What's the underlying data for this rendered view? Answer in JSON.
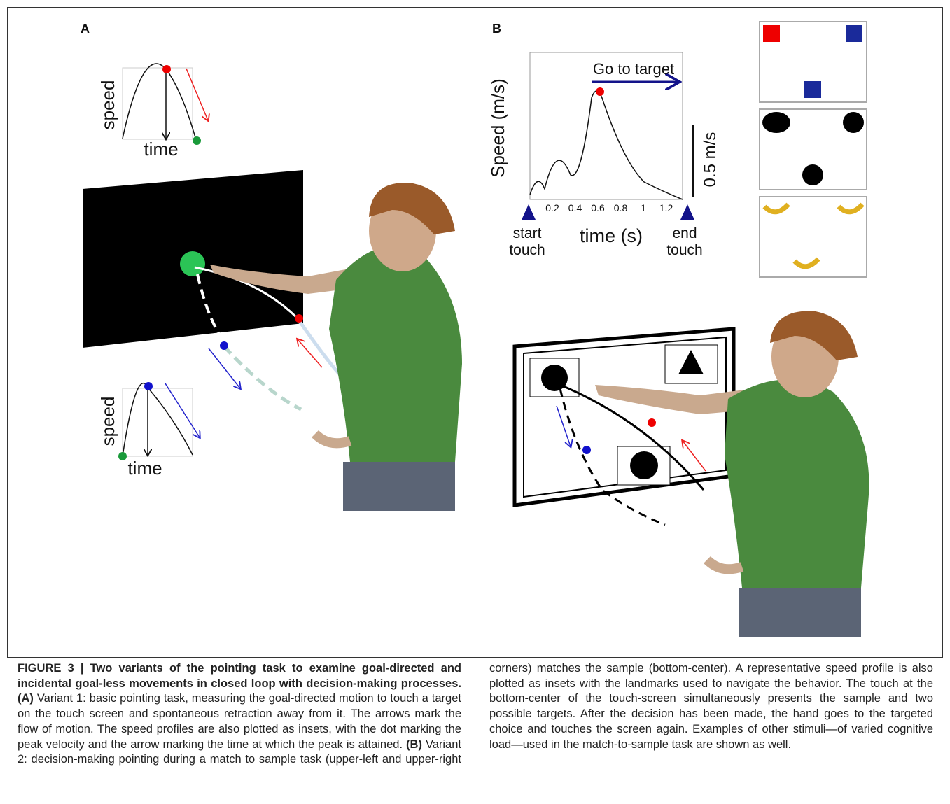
{
  "figure": {
    "panel_a": {
      "label": "A",
      "top_inset": {
        "y_label": "speed",
        "x_label": "time"
      },
      "bottom_inset": {
        "y_label": "speed",
        "x_label": "time"
      }
    },
    "panel_b": {
      "label": "B",
      "y_label": "Speed (m/s)",
      "annotation": "Go to target",
      "scale_bar": "0.5 m/s",
      "x_ticks": [
        "0.2",
        "0.4",
        "0.6",
        "0.8",
        "1",
        "1.2"
      ],
      "x_label": "time (s)",
      "start_label": "start\ntouch",
      "end_label": "end\ntouch"
    }
  },
  "caption": {
    "title": "FIGURE 3 | Two variants of the pointing task to examine goal-directed and incidental goal-less movements in closed loop with decision-making processes.",
    "a_label": "(A)",
    "a_text": "Variant 1: basic pointing task, measuring the goal-directed motion to touch a target on the touch screen and spontaneous retraction away from it. The arrows mark the flow of motion. The speed profiles are also plotted as insets, with the dot marking the peak velocity and the arrow marking the time at which the peak is attained.",
    "b_label": "(B)",
    "b_text": "Variant 2: decision-making pointing during a match to sample task (upper-left and upper-right corners) matches the sample (bottom-center). A representative speed profile is also plotted as insets with the landmarks used to navigate the behavior. The touch at the bottom-center of the touch-screen simultaneously presents the sample and two possible targets. After the decision has been made, the hand goes to the targeted choice and touches the screen again. Examples of other stimuli—of varied cognitive load—used in the match-to-sample task are shown as well."
  }
}
